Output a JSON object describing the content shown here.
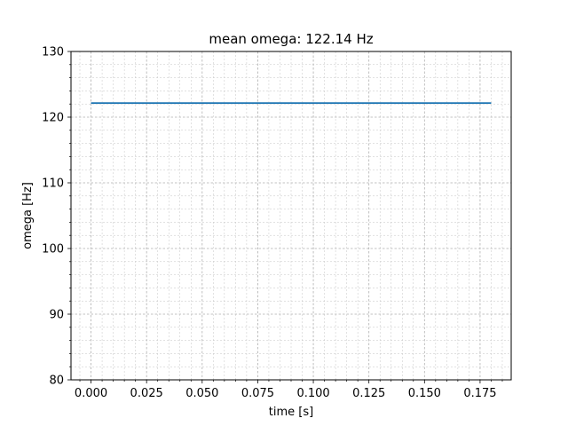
{
  "chart_data": {
    "type": "line",
    "title": "mean omega: 122.14 Hz",
    "xlabel": "time [s]",
    "ylabel": "omega [Hz]",
    "xlim": [
      -0.009,
      0.189
    ],
    "ylim": [
      80,
      130
    ],
    "x_ticks": [
      0.0,
      0.025,
      0.05,
      0.075,
      0.1,
      0.125,
      0.15,
      0.175
    ],
    "x_tick_labels": [
      "0.000",
      "0.025",
      "0.050",
      "0.075",
      "0.100",
      "0.125",
      "0.150",
      "0.175"
    ],
    "x_minor_step": 0.005,
    "y_ticks": [
      80,
      90,
      100,
      110,
      120,
      130
    ],
    "y_tick_labels": [
      "80",
      "90",
      "100",
      "110",
      "120",
      "130"
    ],
    "y_minor_step": 2,
    "grid": true,
    "legend": "none",
    "series": [
      {
        "color": "#1f77b4",
        "x": [
          0.0,
          0.18
        ],
        "y": [
          122.14,
          122.14
        ]
      }
    ]
  }
}
